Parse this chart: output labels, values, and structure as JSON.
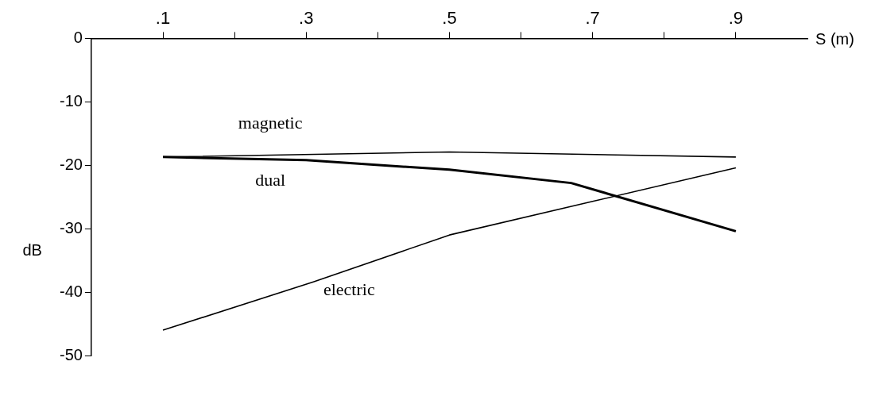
{
  "chart_data": {
    "type": "line",
    "xlabel": "S (m)",
    "ylabel": "dB",
    "xlim": [
      0,
      1
    ],
    "xticks": [
      {
        "value": 0.1,
        "label": ".1"
      },
      {
        "value": 0.2,
        "label": null
      },
      {
        "value": 0.3,
        "label": ".3"
      },
      {
        "value": 0.4,
        "label": null
      },
      {
        "value": 0.5,
        "label": ".5"
      },
      {
        "value": 0.6,
        "label": null
      },
      {
        "value": 0.7,
        "label": ".7"
      },
      {
        "value": 0.8,
        "label": null
      },
      {
        "value": 0.9,
        "label": ".9"
      }
    ],
    "ylim": [
      -50,
      0
    ],
    "yticks": [
      0,
      -10,
      -20,
      -30,
      -40,
      -50
    ],
    "grid": false,
    "legend": false,
    "marker": "none",
    "line_style": "solid",
    "series": [
      {
        "name": "magnetic",
        "color": "#000000",
        "x": [
          0.1,
          0.5,
          0.9
        ],
        "values": [
          -18.7,
          -17.9,
          -18.7
        ]
      },
      {
        "name": "dual",
        "color": "#000000",
        "x": [
          0.1,
          0.3,
          0.5,
          0.67,
          0.9
        ],
        "values": [
          -18.7,
          -19.2,
          -20.7,
          -22.8,
          -30.4
        ]
      },
      {
        "name": "electric",
        "color": "#000000",
        "x": [
          0.1,
          0.31,
          0.5,
          0.7,
          0.9
        ],
        "values": [
          -46,
          -38.4,
          -31,
          -25.7,
          -20.4
        ]
      }
    ]
  }
}
